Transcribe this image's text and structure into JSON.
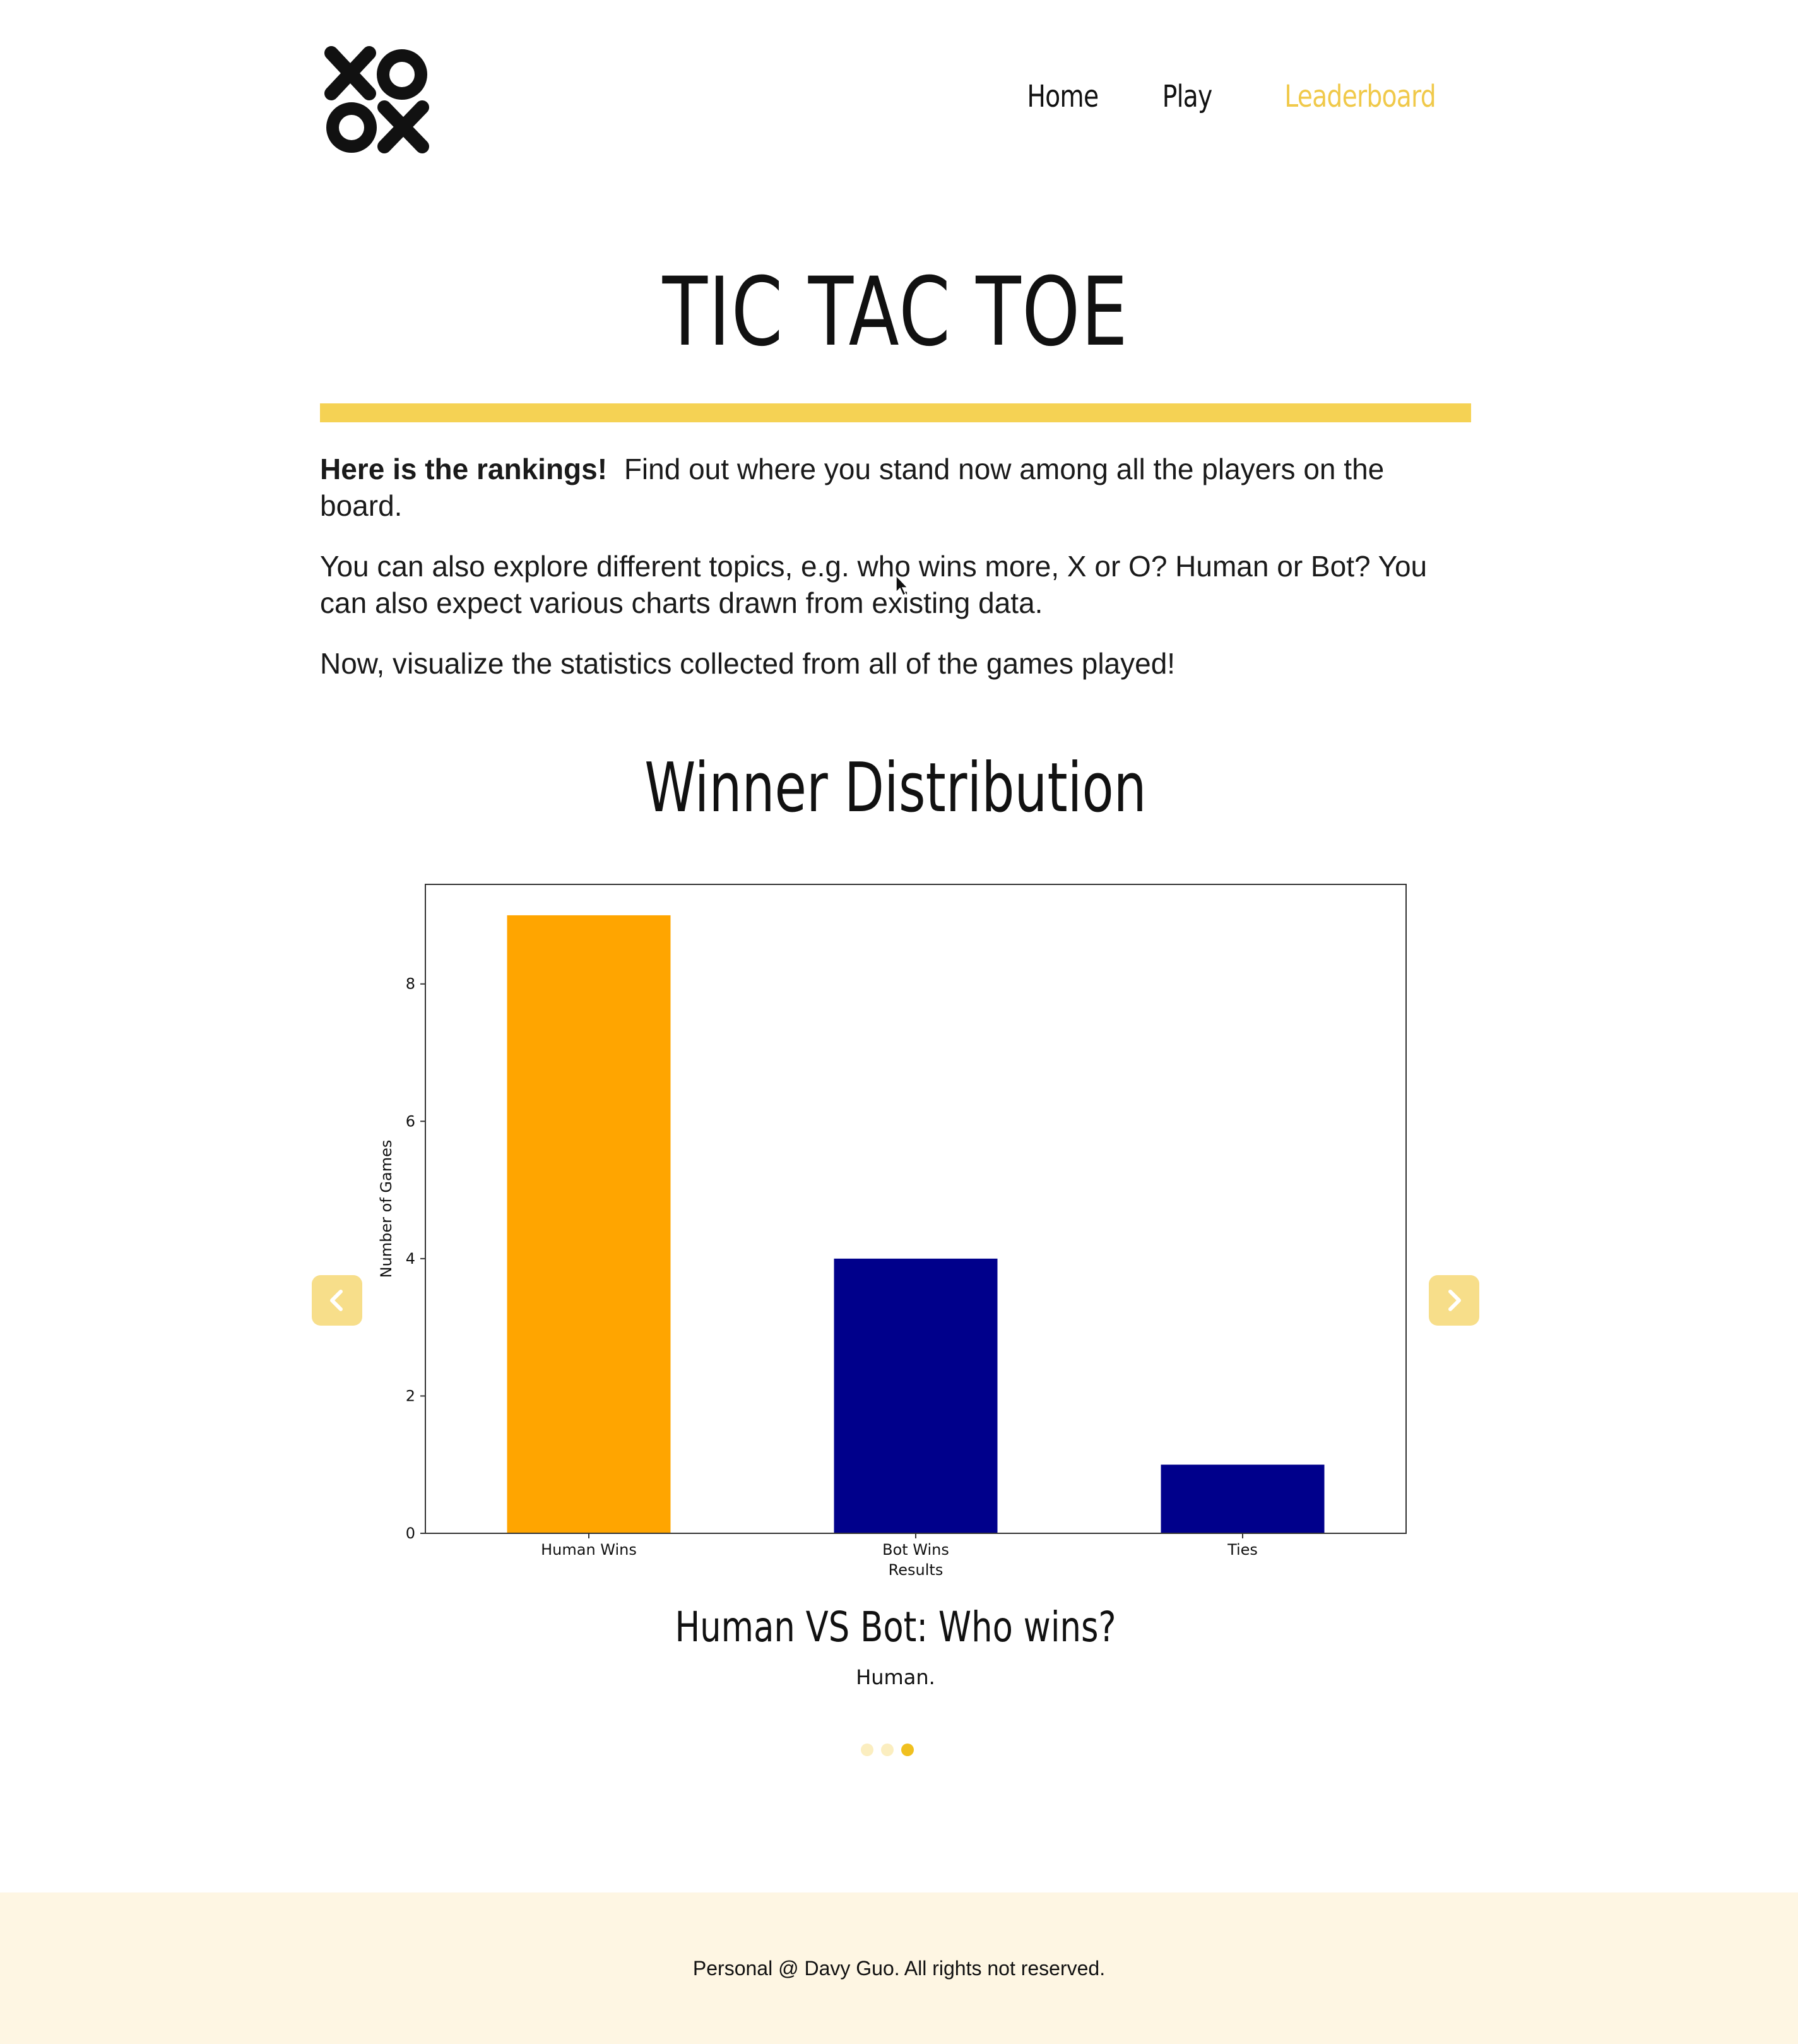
{
  "nav": {
    "logo_alt": "XO OX",
    "links": [
      {
        "label": "Home",
        "active": false
      },
      {
        "label": "Play",
        "active": false
      },
      {
        "label": "Leaderboard",
        "active": true
      }
    ]
  },
  "hero": {
    "title": "TIC TAC TOE",
    "intro_bold": "Here is the rankings!",
    "intro_rest": "Find out where you stand now among all the players on the board.",
    "paragraph2": "You can also explore different topics, e.g. who wins more, X or O? Human or Bot? You can also expect various charts drawn from existing data.",
    "paragraph3": "Now, visualize the statistics collected from all of the games played!"
  },
  "carousel": {
    "section_title": "Winner Distribution",
    "caption_title": "Human VS Bot: Who wins?",
    "caption_text": "Human.",
    "active_index": 2,
    "slide_count": 3,
    "prev_icon": "chevron-left-icon",
    "next_icon": "chevron-right-icon"
  },
  "chart_data": {
    "type": "bar",
    "categories": [
      "Human Wins",
      "Bot Wins",
      "Ties"
    ],
    "values": [
      9,
      4,
      1
    ],
    "colors": [
      "#ffa500",
      "#00008b",
      "#00008b"
    ],
    "xlabel": "Results",
    "ylabel": "Number of Games",
    "ylim": [
      0,
      9.45
    ],
    "yticks": [
      0,
      2,
      4,
      6,
      8
    ],
    "grid": false
  },
  "footer": {
    "text": "Personal @ Davy Guo.  All rights not reserved."
  },
  "colors": {
    "accent": "#f5d254",
    "active_nav": "#f0c94a",
    "footer_bg": "#fef6e3",
    "button_bg": "#f7de8a"
  }
}
